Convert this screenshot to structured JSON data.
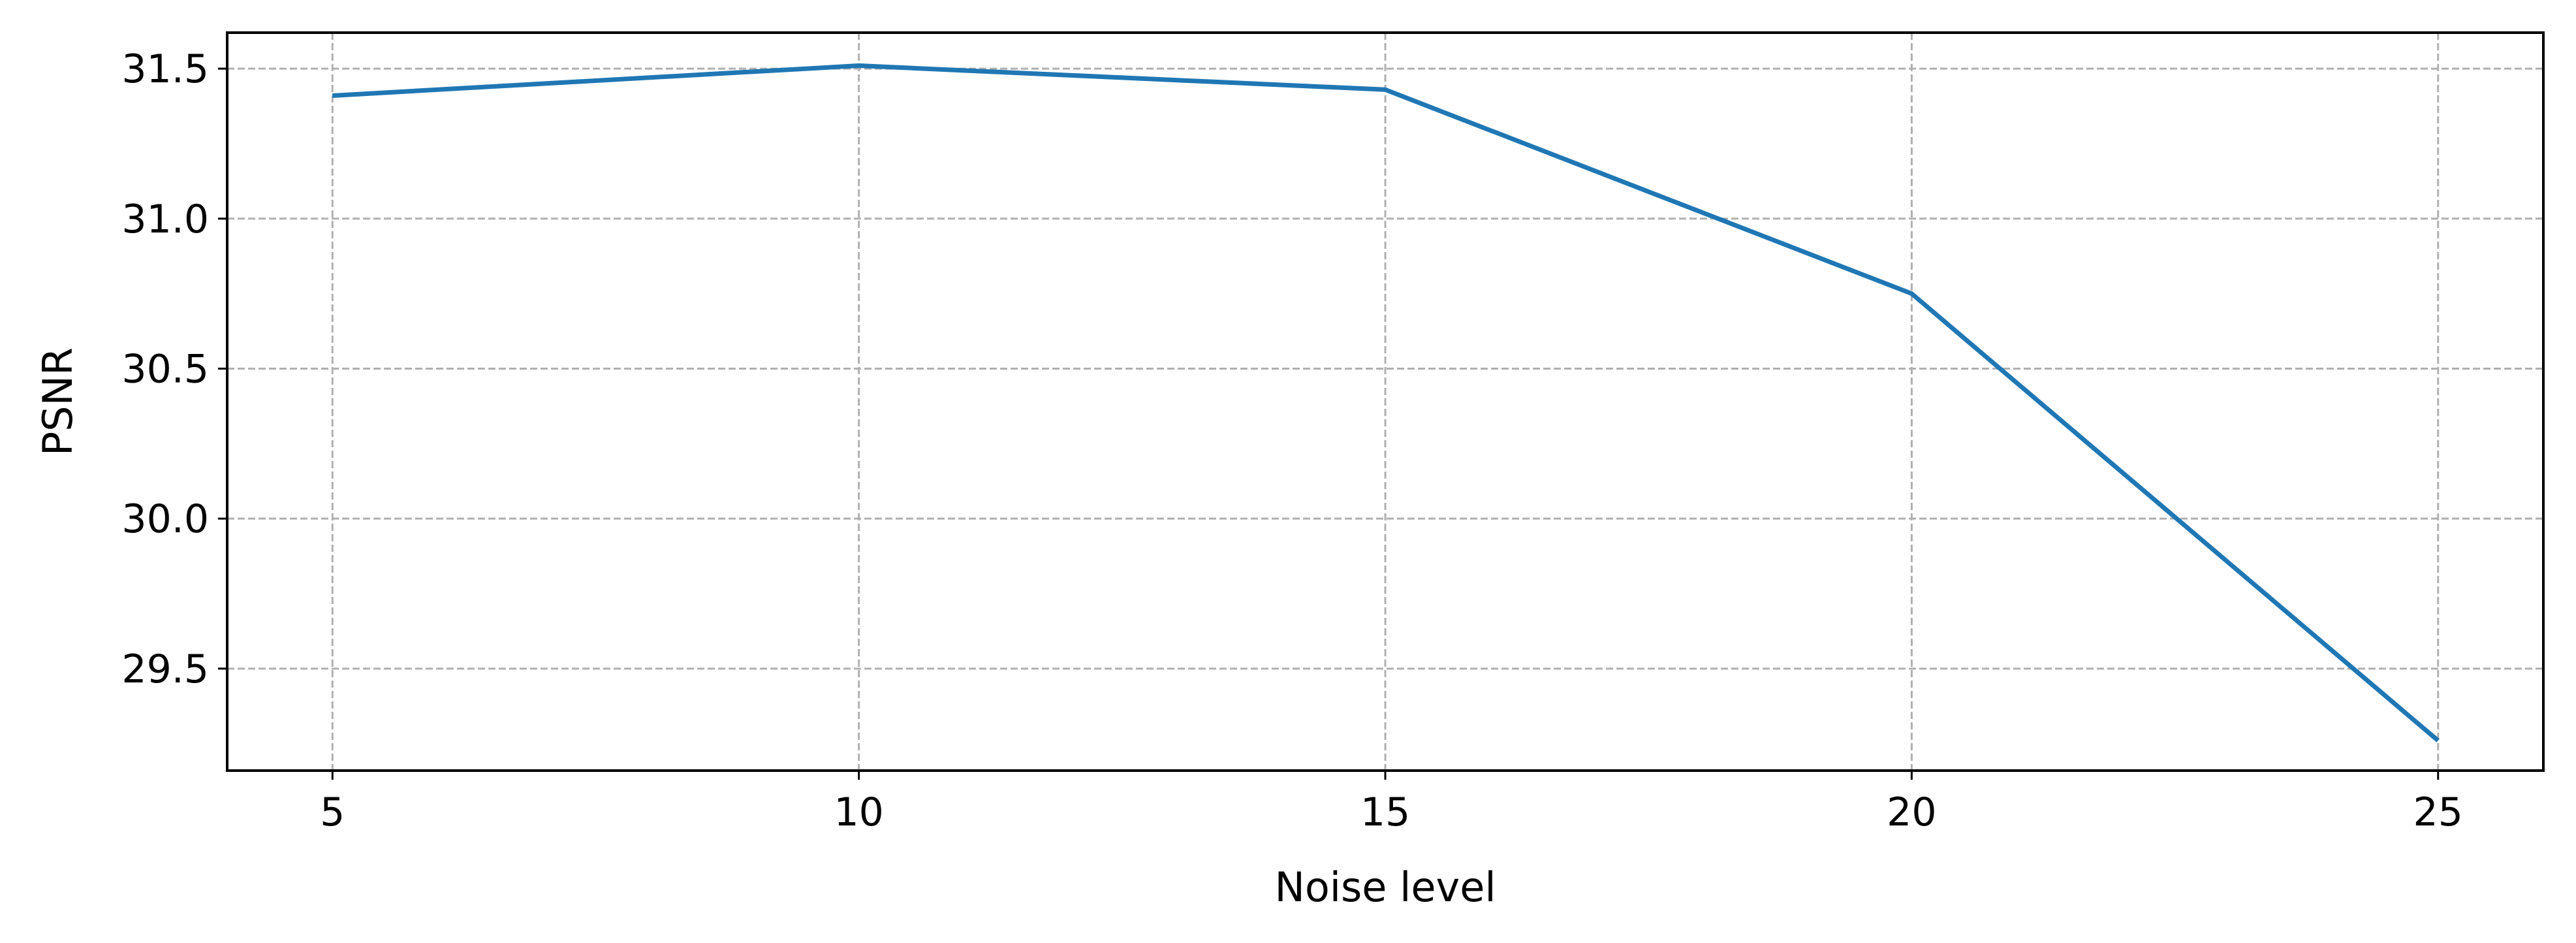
{
  "chart_data": {
    "type": "line",
    "title": "",
    "xlabel": "Noise level",
    "ylabel": "PSNR",
    "xlim": [
      4,
      26
    ],
    "ylim": [
      29.16,
      31.62
    ],
    "x_ticks": [
      "5",
      "10",
      "15",
      "20",
      "25"
    ],
    "y_ticks": [
      "29.5",
      "30.0",
      "30.5",
      "31.0",
      "31.5"
    ],
    "grid": true,
    "series": [
      {
        "x": [
          5,
          10,
          15,
          20,
          25
        ],
        "values": [
          31.41,
          31.51,
          31.43,
          30.75,
          29.26
        ],
        "color": "#1f77b4"
      }
    ]
  }
}
